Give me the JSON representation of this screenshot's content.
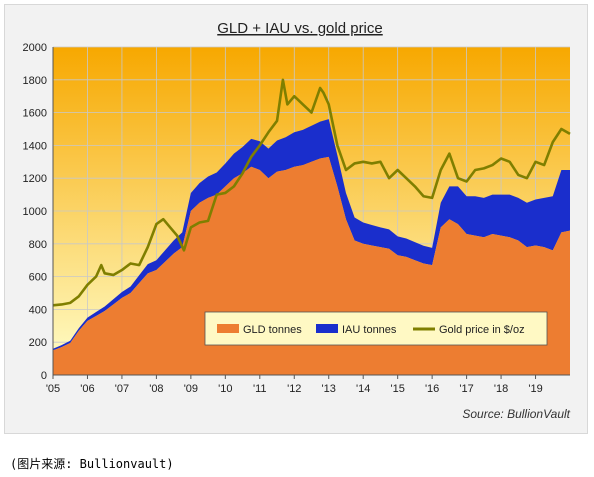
{
  "chart_data": {
    "type": "area",
    "title": "GLD + IAU vs. gold price",
    "source": "Source:  BullionVault",
    "x_ticks": [
      "'05",
      "'06",
      "'07",
      "'08",
      "'09",
      "'10",
      "'11",
      "'12",
      "'13",
      "'14",
      "'15",
      "'16",
      "'17",
      "'18",
      "'19"
    ],
    "xlim": [
      2005,
      2020.0
    ],
    "ylim": [
      0,
      2000
    ],
    "y_ticks": [
      0,
      200,
      400,
      600,
      800,
      1000,
      1200,
      1400,
      1600,
      1800,
      2000
    ],
    "grid": true,
    "legend_placement": "bottom-right",
    "colors": {
      "gld": "#ed7d31",
      "iau": "#1a2ecc",
      "gold": "#7f7f00",
      "bg_top": "#f7a800",
      "bg_bottom": "#ffffcc"
    },
    "series": [
      {
        "name": "GLD tonnes",
        "x": [
          2005.0,
          2005.25,
          2005.5,
          2005.75,
          2006.0,
          2006.25,
          2006.5,
          2006.75,
          2007.0,
          2007.25,
          2007.5,
          2007.75,
          2008.0,
          2008.25,
          2008.5,
          2008.75,
          2009.0,
          2009.25,
          2009.5,
          2009.75,
          2010.0,
          2010.25,
          2010.5,
          2010.75,
          2011.0,
          2011.25,
          2011.5,
          2011.75,
          2012.0,
          2012.25,
          2012.5,
          2012.75,
          2013.0,
          2013.25,
          2013.5,
          2013.75,
          2014.0,
          2014.25,
          2014.5,
          2014.75,
          2015.0,
          2015.25,
          2015.5,
          2015.75,
          2016.0,
          2016.25,
          2016.5,
          2016.75,
          2017.0,
          2017.25,
          2017.5,
          2017.75,
          2018.0,
          2018.25,
          2018.5,
          2018.75,
          2019.0,
          2019.25,
          2019.5,
          2019.75,
          2020.0
        ],
        "values": [
          150,
          170,
          195,
          270,
          330,
          360,
          390,
          430,
          470,
          500,
          560,
          620,
          640,
          690,
          740,
          780,
          1000,
          1050,
          1080,
          1100,
          1150,
          1200,
          1230,
          1270,
          1250,
          1200,
          1240,
          1250,
          1270,
          1280,
          1300,
          1320,
          1330,
          1150,
          950,
          820,
          800,
          790,
          780,
          770,
          730,
          720,
          700,
          680,
          670,
          900,
          950,
          920,
          860,
          850,
          840,
          860,
          850,
          840,
          820,
          780,
          790,
          780,
          760,
          870,
          880
        ]
      },
      {
        "name": "IAU tonnes",
        "x": [
          2005.0,
          2005.25,
          2005.5,
          2005.75,
          2006.0,
          2006.25,
          2006.5,
          2006.75,
          2007.0,
          2007.25,
          2007.5,
          2007.75,
          2008.0,
          2008.25,
          2008.5,
          2008.75,
          2009.0,
          2009.25,
          2009.5,
          2009.75,
          2010.0,
          2010.25,
          2010.5,
          2010.75,
          2011.0,
          2011.25,
          2011.5,
          2011.75,
          2012.0,
          2012.25,
          2012.5,
          2012.75,
          2013.0,
          2013.25,
          2013.5,
          2013.75,
          2014.0,
          2014.25,
          2014.5,
          2014.75,
          2015.0,
          2015.25,
          2015.5,
          2015.75,
          2016.0,
          2016.25,
          2016.5,
          2016.75,
          2017.0,
          2017.25,
          2017.5,
          2017.75,
          2018.0,
          2018.25,
          2018.5,
          2018.75,
          2019.0,
          2019.25,
          2019.5,
          2019.75,
          2020.0
        ],
        "values": [
          10,
          12,
          14,
          16,
          20,
          24,
          28,
          32,
          36,
          40,
          48,
          56,
          60,
          70,
          80,
          90,
          110,
          120,
          130,
          135,
          140,
          150,
          160,
          170,
          175,
          180,
          190,
          200,
          210,
          215,
          220,
          225,
          230,
          190,
          160,
          140,
          130,
          125,
          120,
          118,
          115,
          112,
          110,
          108,
          105,
          150,
          200,
          230,
          230,
          240,
          240,
          240,
          250,
          260,
          260,
          270,
          280,
          300,
          330,
          380,
          370
        ]
      },
      {
        "name": "Gold price in $/oz",
        "x": [
          2005.0,
          2005.25,
          2005.5,
          2005.75,
          2006.0,
          2006.25,
          2006.4,
          2006.5,
          2006.75,
          2007.0,
          2007.25,
          2007.5,
          2007.75,
          2008.0,
          2008.2,
          2008.4,
          2008.6,
          2008.8,
          2009.0,
          2009.25,
          2009.5,
          2009.75,
          2010.0,
          2010.25,
          2010.5,
          2010.75,
          2011.0,
          2011.25,
          2011.5,
          2011.67,
          2011.8,
          2012.0,
          2012.25,
          2012.5,
          2012.75,
          2012.85,
          2013.0,
          2013.25,
          2013.5,
          2013.75,
          2014.0,
          2014.25,
          2014.5,
          2014.75,
          2015.0,
          2015.25,
          2015.5,
          2015.75,
          2016.0,
          2016.25,
          2016.5,
          2016.75,
          2017.0,
          2017.25,
          2017.5,
          2017.75,
          2018.0,
          2018.25,
          2018.5,
          2018.75,
          2019.0,
          2019.25,
          2019.5,
          2019.75,
          2020.0
        ],
        "values": [
          425,
          430,
          440,
          480,
          550,
          600,
          670,
          620,
          610,
          640,
          680,
          670,
          780,
          920,
          950,
          900,
          850,
          760,
          900,
          930,
          940,
          1100,
          1110,
          1150,
          1230,
          1330,
          1400,
          1480,
          1550,
          1800,
          1650,
          1700,
          1650,
          1600,
          1750,
          1720,
          1650,
          1400,
          1250,
          1290,
          1300,
          1290,
          1300,
          1200,
          1250,
          1200,
          1150,
          1090,
          1080,
          1250,
          1350,
          1200,
          1180,
          1250,
          1260,
          1280,
          1320,
          1300,
          1220,
          1200,
          1300,
          1280,
          1420,
          1500,
          1470
        ]
      }
    ]
  },
  "caption": "(图片来源: Bullionvault)"
}
